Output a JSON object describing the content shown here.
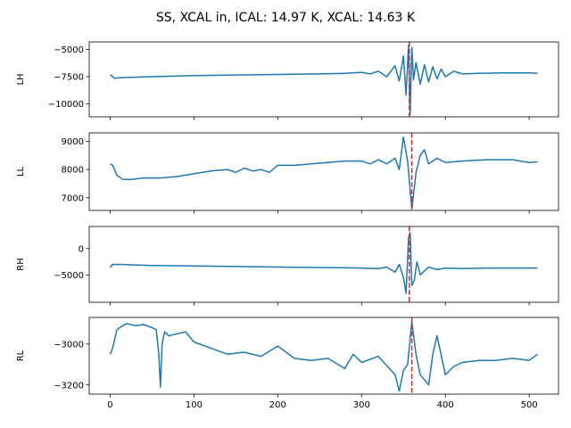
{
  "title": "SS, XCAL in, ICAL: 14.97 K, XCAL: 14.63 K",
  "chart_data": [
    {
      "type": "line",
      "ylabel": "LH",
      "xlim": [
        -25,
        535
      ],
      "ylim": [
        -11200,
        -4300
      ],
      "yticks": [
        -5000,
        -7500,
        -10000
      ],
      "ytick_labels": [
        "−5000",
        "−7500",
        "−10000"
      ],
      "line_color": "#1f77b4",
      "marker_x": 357,
      "marker_color": "#d62728",
      "series": [
        {
          "x": [
            0,
            5,
            10,
            20,
            30,
            50,
            80,
            100,
            150,
            200,
            250,
            280,
            300,
            310,
            320,
            330,
            340,
            345,
            350,
            353,
            356,
            358,
            360,
            362,
            365,
            370,
            375,
            380,
            385,
            390,
            395,
            400,
            410,
            420,
            440,
            470,
            500,
            510
          ],
          "y": [
            -7300,
            -7650,
            -7600,
            -7580,
            -7550,
            -7500,
            -7450,
            -7400,
            -7350,
            -7300,
            -7250,
            -7200,
            -7100,
            -7250,
            -7000,
            -7500,
            -6500,
            -7900,
            -5600,
            -9200,
            -4600,
            -11000,
            -4800,
            -7800,
            -6200,
            -8200,
            -6400,
            -8000,
            -6600,
            -7700,
            -6800,
            -7500,
            -7000,
            -7250,
            -7200,
            -7150,
            -7150,
            -7200
          ]
        }
      ]
    },
    {
      "type": "line",
      "ylabel": "LL",
      "xlim": [
        -25,
        535
      ],
      "ylim": [
        6550,
        9300
      ],
      "yticks": [
        9000,
        8000,
        7000
      ],
      "ytick_labels": [
        "9000",
        "8000",
        "7000"
      ],
      "line_color": "#1f77b4",
      "marker_x": 360,
      "marker_color": "#d62728",
      "series": [
        {
          "x": [
            0,
            3,
            8,
            15,
            25,
            40,
            60,
            80,
            100,
            120,
            140,
            150,
            160,
            170,
            180,
            190,
            200,
            220,
            240,
            260,
            280,
            300,
            310,
            320,
            330,
            340,
            345,
            350,
            355,
            360,
            365,
            370,
            375,
            380,
            390,
            400,
            420,
            450,
            480,
            500,
            510
          ],
          "y": [
            8200,
            8150,
            7800,
            7650,
            7650,
            7700,
            7700,
            7750,
            7850,
            7950,
            8000,
            7900,
            8050,
            7950,
            8000,
            7900,
            8150,
            8150,
            8200,
            8250,
            8300,
            8300,
            8200,
            8350,
            8200,
            8400,
            8000,
            9150,
            8300,
            6600,
            7900,
            8500,
            8700,
            8200,
            8400,
            8250,
            8300,
            8350,
            8350,
            8250,
            8270
          ]
        }
      ]
    },
    {
      "type": "line",
      "ylabel": "RH",
      "xlim": [
        -25,
        535
      ],
      "ylim": [
        -10200,
        4200
      ],
      "yticks": [
        0,
        -5000
      ],
      "ytick_labels": [
        "0",
        "−5000"
      ],
      "line_color": "#1f77b4",
      "marker_x": 357,
      "marker_color": "#d62728",
      "series": [
        {
          "x": [
            0,
            3,
            10,
            50,
            100,
            150,
            200,
            250,
            300,
            320,
            330,
            340,
            345,
            350,
            353,
            356,
            358,
            360,
            363,
            366,
            370,
            380,
            390,
            400,
            420,
            450,
            480,
            510
          ],
          "y": [
            -3600,
            -3000,
            -3000,
            -3200,
            -3300,
            -3400,
            -3500,
            -3600,
            -3700,
            -3800,
            -3500,
            -4500,
            -3000,
            -5500,
            -8500,
            2000,
            3000,
            -7000,
            -6000,
            -2500,
            -5000,
            -3500,
            -4000,
            -3700,
            -3800,
            -3700,
            -3700,
            -3700
          ]
        }
      ]
    },
    {
      "type": "line",
      "ylabel": "RL",
      "xlim": [
        -25,
        535
      ],
      "ylim": [
        -3245,
        -2870
      ],
      "yticks": [
        -3000,
        -3200
      ],
      "ytick_labels": [
        "−3000",
        "−3200"
      ],
      "line_color": "#1f77b4",
      "marker_x": 360,
      "marker_color": "#d62728",
      "series": [
        {
          "x": [
            0,
            3,
            8,
            15,
            20,
            30,
            40,
            50,
            55,
            58,
            60,
            62,
            65,
            70,
            80,
            90,
            100,
            120,
            140,
            160,
            180,
            200,
            220,
            240,
            260,
            280,
            290,
            300,
            320,
            340,
            345,
            350,
            355,
            360,
            365,
            370,
            380,
            385,
            390,
            400,
            410,
            420,
            440,
            460,
            480,
            500,
            510
          ],
          "y": [
            -3050,
            -3020,
            -2930,
            -2910,
            -2900,
            -2910,
            -2905,
            -2920,
            -2930,
            -3050,
            -3210,
            -3000,
            -2940,
            -2960,
            -2950,
            -2940,
            -2990,
            -3020,
            -3050,
            -3040,
            -3060,
            -3010,
            -3070,
            -3080,
            -3070,
            -3120,
            -3050,
            -3090,
            -3060,
            -3150,
            -3230,
            -3130,
            -3100,
            -2890,
            -3050,
            -3150,
            -3200,
            -3050,
            -2960,
            -3150,
            -3110,
            -3090,
            -3080,
            -3080,
            -3070,
            -3080,
            -3050
          ]
        }
      ]
    }
  ],
  "x_axis": {
    "ticks": [
      0,
      100,
      200,
      300,
      400,
      500
    ],
    "tick_labels": [
      "0",
      "100",
      "200",
      "300",
      "400",
      "500"
    ]
  }
}
